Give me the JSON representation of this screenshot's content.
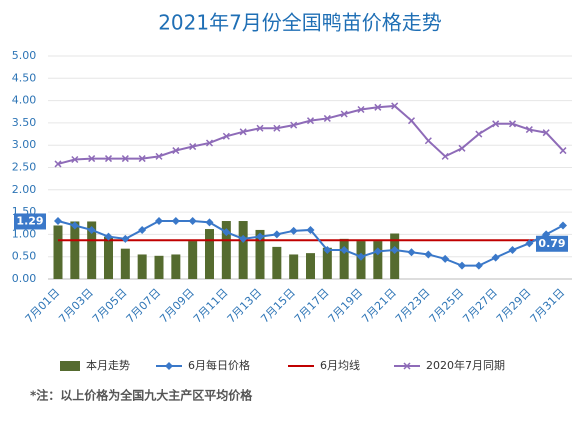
{
  "chart_data": {
    "type": "combo",
    "title": "2021年7月份全国鸭苗价格走势",
    "categories": [
      "7月01日",
      null,
      "7月03日",
      null,
      "7月05日",
      null,
      "7月07日",
      null,
      "7月09日",
      null,
      "7月11日",
      null,
      "7月13日",
      null,
      "7月15日",
      null,
      "7月17日",
      null,
      "7月19日",
      null,
      "7月21日",
      null,
      "7月23日",
      null,
      "7月25日",
      null,
      "7月27日",
      null,
      "7月29日",
      null,
      "7月31日"
    ],
    "ylim": [
      0,
      5
    ],
    "yticks": [
      {
        "value": 0,
        "label": "0.00"
      },
      {
        "value": 0.5,
        "label": "0.50"
      },
      {
        "value": 1,
        "label": "1.00"
      },
      {
        "value": 1.5,
        "label": "1.50"
      },
      {
        "value": 2,
        "label": "2.00"
      },
      {
        "value": 2.5,
        "label": "2.50"
      },
      {
        "value": 3,
        "label": "3.00"
      },
      {
        "value": 3.5,
        "label": "3.50"
      },
      {
        "value": 4,
        "label": "4.00"
      },
      {
        "value": 4.5,
        "label": "4.50"
      },
      {
        "value": 5,
        "label": "5.00"
      }
    ],
    "series": [
      {
        "name": "本月走势",
        "kind": "bar",
        "color": "#556b2f",
        "values": [
          1.2,
          1.29,
          1.29,
          0.95,
          0.68,
          0.55,
          0.52,
          0.55,
          0.85,
          1.12,
          1.3,
          1.3,
          1.1,
          0.72,
          0.55,
          0.58,
          0.7,
          0.9,
          0.85,
          0.85,
          1.02,
          null,
          null,
          null,
          null,
          null,
          null,
          null,
          null,
          null,
          null
        ]
      },
      {
        "name": "6月每日价格",
        "kind": "line-diamond",
        "color": "#3a78c9",
        "values": [
          1.3,
          1.2,
          1.1,
          0.95,
          0.9,
          1.1,
          1.3,
          1.3,
          1.3,
          1.27,
          1.05,
          0.9,
          0.95,
          1.0,
          1.08,
          1.1,
          0.65,
          0.65,
          0.5,
          0.62,
          0.65,
          0.6,
          0.55,
          0.45,
          0.3,
          0.3,
          0.48,
          0.65,
          0.8,
          1.0,
          1.2
        ]
      },
      {
        "name": "6月均线",
        "kind": "line",
        "color": "#c00000",
        "values": [
          0.87,
          0.87,
          0.87,
          0.87,
          0.87,
          0.87,
          0.87,
          0.87,
          0.87,
          0.87,
          0.87,
          0.87,
          0.87,
          0.87,
          0.87,
          0.87,
          0.87,
          0.87,
          0.87,
          0.87,
          0.87,
          0.87,
          0.87,
          0.87,
          0.87,
          0.87,
          0.87,
          0.87,
          0.87,
          0.87,
          0.87
        ]
      },
      {
        "name": "2020年7月同期",
        "kind": "line-cross",
        "color": "#8e6bb8",
        "values": [
          2.58,
          2.68,
          2.7,
          2.7,
          2.7,
          2.7,
          2.75,
          2.88,
          2.97,
          3.05,
          3.2,
          3.3,
          3.38,
          3.38,
          3.45,
          3.55,
          3.6,
          3.7,
          3.8,
          3.85,
          3.88,
          3.55,
          3.1,
          2.75,
          2.93,
          3.25,
          3.48,
          3.48,
          3.35,
          3.28,
          2.88
        ]
      }
    ],
    "annotations": [
      1.29,
      0.79
    ],
    "note": "*注：以上价格为全国九大主产区平均价格"
  }
}
